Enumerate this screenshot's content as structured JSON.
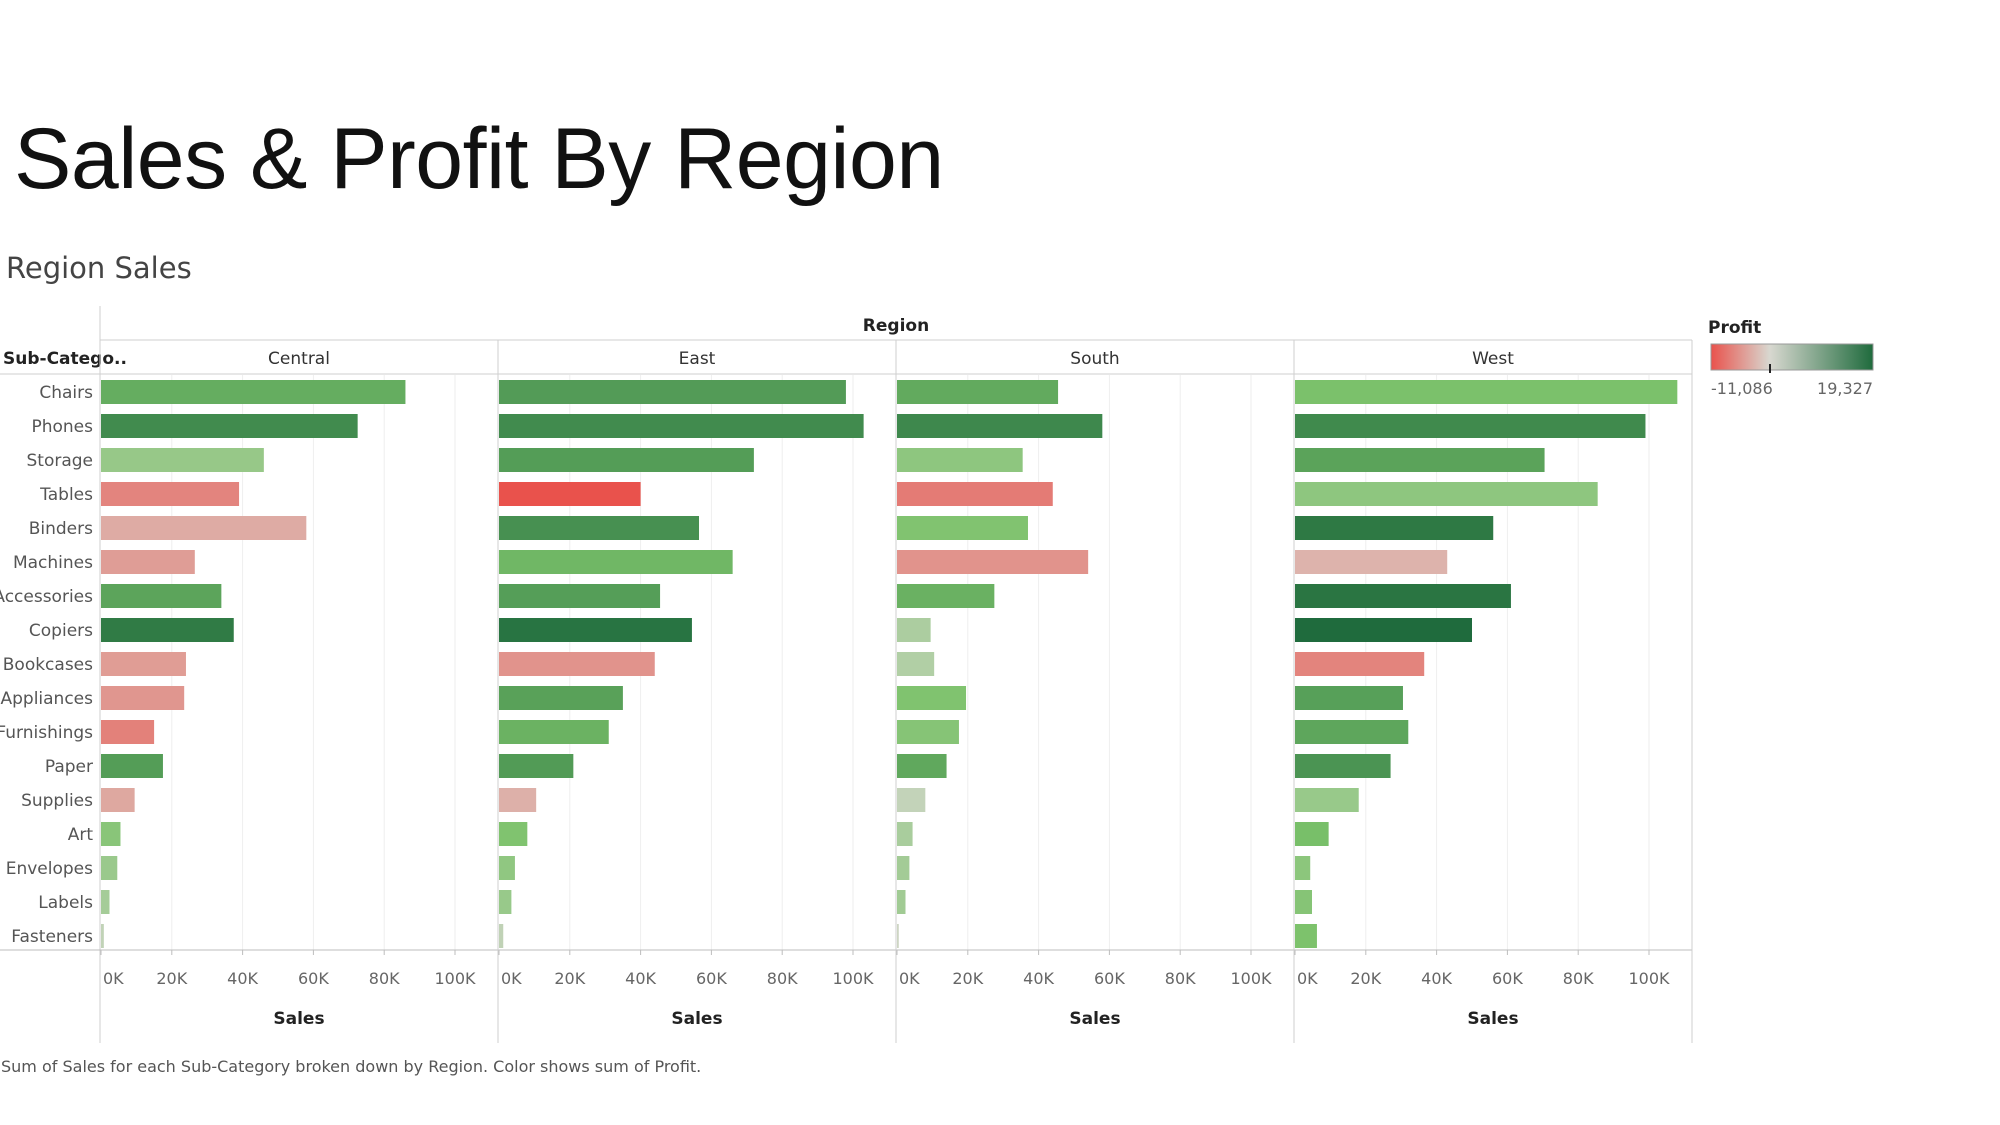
{
  "title": "Sales & Profit By Region",
  "chart_data": {
    "type": "bar",
    "orientation": "horizontal",
    "subtitle": "Region Sales",
    "row_header": "Sub-Catego..",
    "column_header": "Region",
    "xlabel": "Sales",
    "xlim": [
      0,
      110000
    ],
    "x_ticks": [
      "0K",
      "20K",
      "40K",
      "60K",
      "80K",
      "100K"
    ],
    "x_tick_values": [
      0,
      20000,
      40000,
      60000,
      80000,
      100000
    ],
    "grid": true,
    "legend_placement": "right",
    "categories": [
      "Chairs",
      "Phones",
      "Storage",
      "Tables",
      "Binders",
      "Machines",
      "Accessories",
      "Copiers",
      "Bookcases",
      "Appliances",
      "Furnishings",
      "Paper",
      "Supplies",
      "Art",
      "Envelopes",
      "Labels",
      "Fasteners"
    ],
    "series": [
      {
        "name": "Central",
        "values": [
          86000,
          72500,
          46000,
          39000,
          58000,
          26500,
          34000,
          37500,
          24000,
          23500,
          15000,
          17500,
          9500,
          5500,
          4600,
          2400,
          800
        ],
        "profit": [
          6600,
          12300,
          1970,
          -3560,
          -1040,
          -1750,
          7900,
          15700,
          -1800,
          -2200,
          -3900,
          9100,
          -1200,
          2900,
          1800,
          1200,
          240
        ]
      },
      {
        "name": "East",
        "values": [
          98000,
          103000,
          72000,
          40000,
          56500,
          66000,
          45500,
          54500,
          44000,
          35000,
          31000,
          21000,
          10500,
          8000,
          4500,
          3500,
          1200
        ],
        "profit": [
          9300,
          12300,
          9100,
          -11086,
          11300,
          5200,
          8900,
          17300,
          -2400,
          8400,
          5900,
          9400,
          -800,
          3600,
          2400,
          1900,
          260
        ]
      },
      {
        "name": "South",
        "values": [
          45500,
          58000,
          35500,
          44000,
          37000,
          54000,
          27500,
          9500,
          10500,
          19500,
          17500,
          14000,
          8000,
          4400,
          3500,
          2400,
          500
        ]
      },
      {
        "name": "West",
        "values": [
          108000,
          99000,
          70500,
          85500,
          56000,
          43000,
          61000,
          50000,
          36500,
          30500,
          32000,
          27000,
          18000,
          9500,
          4300,
          4800,
          6200
        ],
        "profit": [
          4000,
          12500,
          8100,
          2500,
          16100,
          -700,
          16900,
          19327,
          -3600,
          8600,
          7600,
          10600,
          1900,
          4300,
          2700,
          3100,
          3800
        ]
      }
    ],
    "color_legend": {
      "title": "Profit",
      "min_label": "-11,086",
      "max_label": "19,327",
      "min": -11086,
      "max": 19327,
      "colors": [
        "#e9524c",
        "#d8d8d0",
        "#1f6b3d"
      ]
    },
    "caption": "Sum of Sales for each Sub-Category broken down by Region.  Color shows sum of Profit."
  }
}
